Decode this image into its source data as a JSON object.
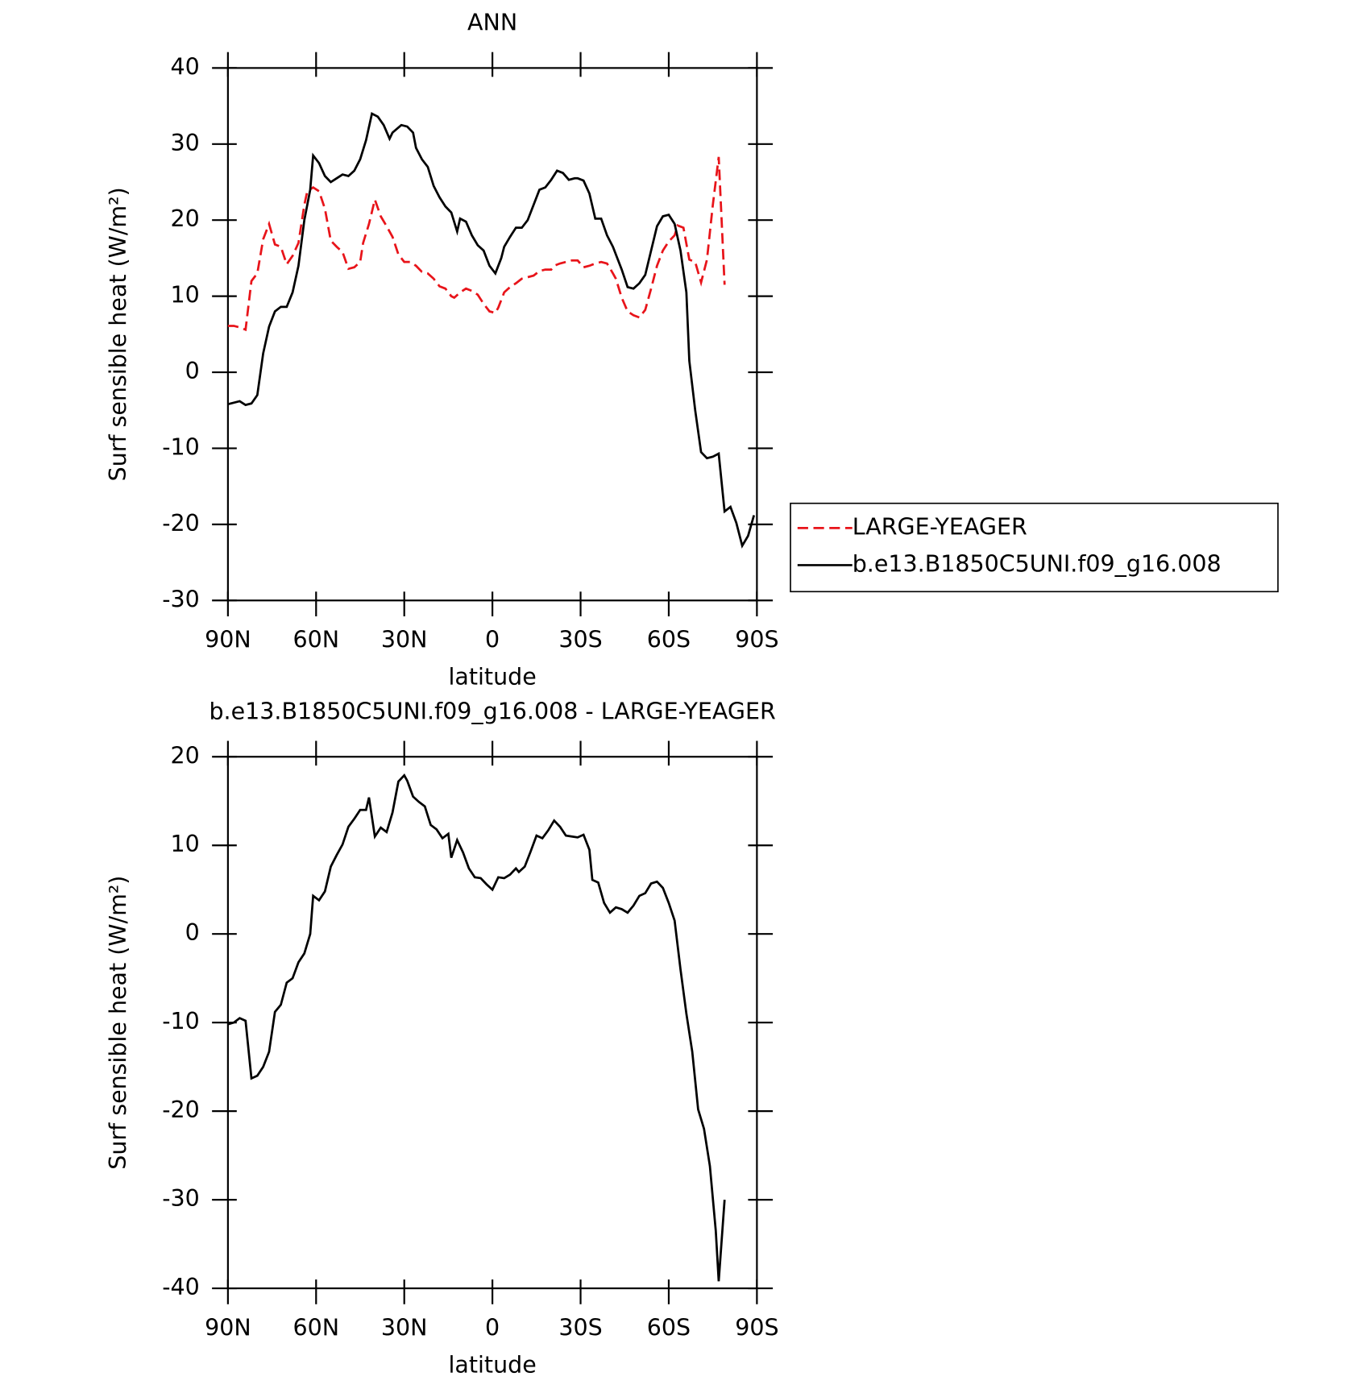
{
  "chart_data": [
    {
      "type": "line",
      "title": "ANN",
      "x_label": "latitude",
      "y_label": "Surf sensible heat (W/m²)",
      "xlim": [
        90,
        -90
      ],
      "ylim": [
        -30,
        40
      ],
      "xticks": [
        {
          "value": 90,
          "label": "90N"
        },
        {
          "value": 60,
          "label": "60N"
        },
        {
          "value": 30,
          "label": "30N"
        },
        0,
        {
          "value": -30,
          "label": "30S"
        },
        {
          "value": -60,
          "label": "60S"
        },
        {
          "value": -90,
          "label": "90S"
        }
      ],
      "yticks": [
        -30,
        -20,
        -10,
        0,
        10,
        20,
        30,
        40
      ],
      "legend": "right",
      "series": [
        {
          "name": "LARGE-YEAGER",
          "color": "#e8141a",
          "dash": true,
          "x": [
            90,
            88,
            86,
            84,
            82,
            80,
            78,
            76,
            74,
            72,
            70,
            68,
            66,
            64,
            63,
            61,
            59,
            57,
            55,
            53,
            51,
            49,
            47,
            45,
            44,
            42,
            40,
            38,
            36,
            34,
            32,
            30,
            28,
            26,
            24,
            22,
            20,
            18,
            16,
            14,
            13,
            11,
            9,
            7,
            5,
            3,
            1,
            -1,
            -2,
            -4,
            -6,
            -8,
            -10,
            -12,
            -14,
            -16,
            -18,
            -20,
            -21,
            -23,
            -25,
            -27,
            -29,
            -31,
            -33,
            -35,
            -37,
            -39,
            -41,
            -42,
            -44,
            -46,
            -48,
            -50,
            -52,
            -54,
            -56,
            -58,
            -60,
            -62,
            -63,
            -65,
            -67,
            -69,
            -71,
            -73,
            -75,
            -77,
            -79
          ],
          "values": [
            6.1,
            6.1,
            5.9,
            5.6,
            12,
            13,
            17.5,
            19.5,
            16.8,
            16.5,
            14.2,
            15.3,
            17,
            22,
            23.8,
            24.3,
            23.8,
            21.5,
            17.3,
            16.5,
            15.8,
            13.6,
            13.8,
            14.5,
            17,
            19.5,
            22.7,
            20.5,
            19.2,
            17.8,
            15.5,
            14.5,
            14.5,
            14,
            13.2,
            13,
            12.3,
            11.3,
            11,
            10,
            9.8,
            10.5,
            11,
            10.7,
            10.2,
            9,
            8,
            7.8,
            8.5,
            10.5,
            11.2,
            11.7,
            12.3,
            12.5,
            12.7,
            13.3,
            13.5,
            13.5,
            14,
            14.3,
            14.5,
            14.7,
            14.7,
            13.8,
            14,
            14.3,
            14.5,
            14.3,
            13,
            12.3,
            9.8,
            8,
            7.5,
            7.2,
            8.2,
            11,
            14,
            16,
            17.2,
            18,
            19.3,
            19,
            14.8,
            14.5,
            11.8,
            14.8,
            22,
            28.3,
            11.5
          ]
        },
        {
          "name": "b.e13.B1850C5UNI.f09_g16.008",
          "color": "#000000",
          "x": [
            90,
            86,
            84,
            82,
            80,
            78,
            76,
            74,
            72,
            70,
            68,
            66,
            64,
            62,
            61,
            59,
            57,
            55,
            53,
            51,
            49,
            47,
            45,
            43,
            41,
            39,
            37,
            35,
            34,
            31,
            29,
            27,
            26,
            24,
            22,
            20,
            18,
            16,
            14,
            12,
            11,
            9,
            7,
            5,
            3,
            1,
            -1,
            -3,
            -4,
            -6,
            -8,
            -10,
            -12,
            -14,
            -16,
            -18,
            -20,
            -22,
            -24,
            -26,
            -28,
            -29,
            -31,
            -33,
            -35,
            -37,
            -39,
            -41,
            -42,
            -44,
            -46,
            -48,
            -50,
            -52,
            -54,
            -56,
            -58,
            -60,
            -62,
            -64,
            -66,
            -67,
            -69,
            -71,
            -73,
            -75,
            -77,
            -79,
            -81,
            -83,
            -85,
            -87,
            -89
          ],
          "values": [
            -4.2,
            -3.8,
            -4.3,
            -4.1,
            -3,
            2.5,
            6,
            8,
            8.6,
            8.6,
            10.5,
            14,
            20,
            24,
            28.5,
            27.5,
            25.8,
            25,
            25.5,
            26,
            25.8,
            26.5,
            28,
            30.5,
            34,
            33.6,
            32.5,
            30.7,
            31.5,
            32.5,
            32.3,
            31.5,
            29.5,
            28,
            27,
            24.5,
            23,
            21.8,
            21,
            18.5,
            20.2,
            19.8,
            18,
            16.7,
            16,
            14,
            13,
            15,
            16.5,
            17.8,
            19,
            19,
            20,
            22,
            24,
            24.3,
            25.3,
            26.5,
            26.2,
            25.3,
            25.5,
            25.5,
            25.2,
            23.5,
            20.2,
            20.2,
            18,
            16.5,
            15.5,
            13.5,
            11.2,
            11,
            11.7,
            12.8,
            16,
            19.2,
            20.5,
            20.7,
            19.5,
            16,
            10.5,
            1.5,
            -5,
            -10.5,
            -11.3,
            -11.1,
            -10.7,
            -18.3,
            -17.7,
            -19.8,
            -22.8,
            -21.5,
            -18.8
          ]
        }
      ]
    },
    {
      "type": "line",
      "title": "b.e13.B1850C5UNI.f09_g16.008 - LARGE-YEAGER",
      "x_label": "latitude",
      "y_label": "Surf sensible heat (W/m²)",
      "xlim": [
        90,
        -90
      ],
      "ylim": [
        -40,
        20
      ],
      "xticks": [
        {
          "value": 90,
          "label": "90N"
        },
        {
          "value": 60,
          "label": "60N"
        },
        {
          "value": 30,
          "label": "30N"
        },
        0,
        {
          "value": -30,
          "label": "30S"
        },
        {
          "value": -60,
          "label": "60S"
        },
        {
          "value": -90,
          "label": "90S"
        }
      ],
      "yticks": [
        -40,
        -30,
        -20,
        -10,
        0,
        10,
        20
      ],
      "series": [
        {
          "color": "#000000",
          "x": [
            90,
            88,
            86,
            84,
            82,
            80,
            78,
            76,
            74,
            72,
            70,
            68,
            66,
            64,
            62,
            61,
            59,
            57,
            55,
            53,
            51,
            49,
            47,
            45,
            43,
            42,
            40,
            38,
            36,
            34,
            32,
            30,
            29,
            27,
            25,
            23,
            21,
            19,
            17,
            15,
            14,
            12,
            10,
            8,
            6,
            4,
            2,
            0,
            -2,
            -4,
            -6,
            -8,
            -9,
            -11,
            -13,
            -15,
            -17,
            -19,
            -21,
            -23,
            -25,
            -27,
            -29,
            -31,
            -33,
            -34,
            -36,
            -38,
            -40,
            -42,
            -44,
            -46,
            -48,
            -50,
            -52,
            -54,
            -56,
            -58,
            -60,
            -62,
            -64,
            -66,
            -68,
            -70,
            -72,
            -74,
            -76,
            -77,
            -79
          ],
          "values": [
            -10.2,
            -10,
            -9.5,
            -9.8,
            -16.3,
            -16,
            -15,
            -13.3,
            -8.8,
            -8,
            -5.5,
            -5,
            -3.2,
            -2.2,
            0,
            4.3,
            3.8,
            4.8,
            7.6,
            8.9,
            10.1,
            12.1,
            13,
            14,
            14,
            15.4,
            11,
            12,
            11.5,
            13.7,
            17.2,
            17.9,
            17.3,
            15.5,
            14.9,
            14.4,
            12.3,
            11.8,
            10.8,
            11.3,
            8.6,
            10.6,
            9.2,
            7.4,
            6.4,
            6.3,
            5.6,
            5,
            6.4,
            6.3,
            6.7,
            7.4,
            7,
            7.6,
            9.3,
            11.1,
            10.8,
            11.7,
            12.8,
            12.1,
            11.1,
            11,
            10.9,
            11.2,
            9.5,
            6.1,
            5.8,
            3.5,
            2.4,
            3,
            2.8,
            2.4,
            3.2,
            4.3,
            4.6,
            5.7,
            5.9,
            5.2,
            3.5,
            1.5,
            -4,
            -9,
            -13.3,
            -19.8,
            -22,
            -26.2,
            -33.5,
            -39.2,
            -30
          ]
        }
      ]
    }
  ]
}
